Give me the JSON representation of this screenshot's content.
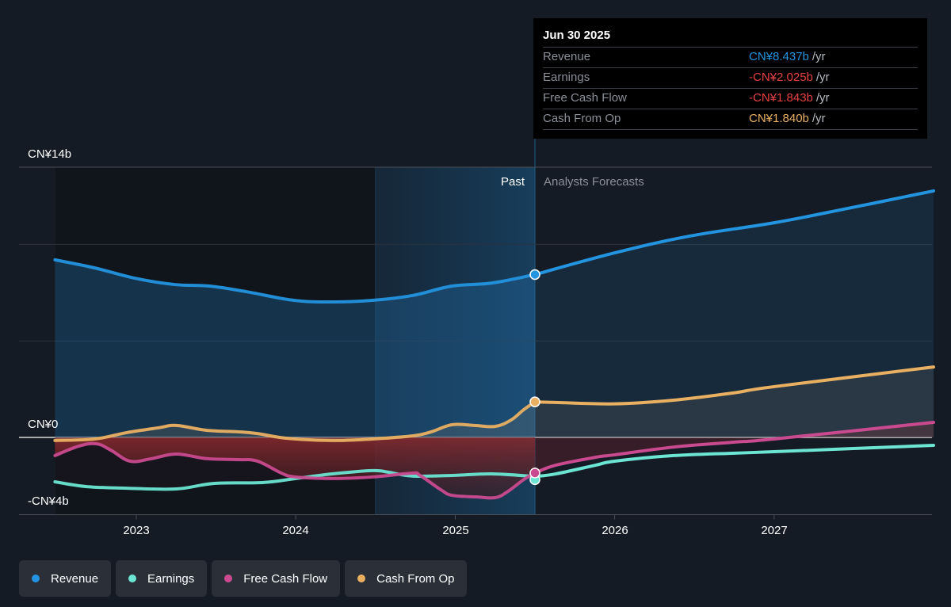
{
  "tooltip": {
    "date": "Jun 30 2025",
    "rows": [
      {
        "name": "Revenue",
        "value": "CN¥8.437b",
        "unit": "/yr",
        "color": "#2394df"
      },
      {
        "name": "Earnings",
        "value": "-CN¥2.025b",
        "unit": "/yr",
        "color": "#e64141"
      },
      {
        "name": "Free Cash Flow",
        "value": "-CN¥1.843b",
        "unit": "/yr",
        "color": "#e64141"
      },
      {
        "name": "Cash From Op",
        "value": "CN¥1.840b",
        "unit": "/yr",
        "color": "#e9b062"
      }
    ]
  },
  "legend": [
    {
      "label": "Revenue",
      "color": "#2394df"
    },
    {
      "label": "Earnings",
      "color": "#6ce5d2"
    },
    {
      "label": "Free Cash Flow",
      "color": "#c94a8f"
    },
    {
      "label": "Cash From Op",
      "color": "#e9b062"
    }
  ],
  "chart_data": {
    "type": "line",
    "title": "",
    "xlabel": "",
    "ylabel": "",
    "currency": "CN¥",
    "unit": "b",
    "xlim": [
      2022.49,
      2028.0
    ],
    "ylim": [
      -4,
      14
    ],
    "y_tick_labels": [
      {
        "value": 14,
        "label": "CN¥14b"
      },
      {
        "value": 0,
        "label": "CN¥0"
      },
      {
        "value": -4,
        "label": "-CN¥4b"
      }
    ],
    "y_gridlines": [
      14,
      10,
      5,
      0,
      -4
    ],
    "x_ticks": [
      {
        "value": 2023,
        "label": "2023"
      },
      {
        "value": 2024,
        "label": "2024"
      },
      {
        "value": 2025,
        "label": "2025"
      },
      {
        "value": 2026,
        "label": "2026"
      },
      {
        "value": 2027,
        "label": "2027"
      }
    ],
    "past_label": "Past",
    "forecast_label": "Analysts Forecasts",
    "highlight_range": [
      2024.5,
      2025.5
    ],
    "divider_x": 2025.5,
    "grid": true,
    "legend_position": "bottom-left",
    "series": [
      {
        "name": "Revenue",
        "color": "#2394df",
        "past": [
          [
            2022.49,
            9.2
          ],
          [
            2022.74,
            8.78
          ],
          [
            2022.99,
            8.25
          ],
          [
            2023.24,
            7.92
          ],
          [
            2023.46,
            7.84
          ],
          [
            2023.69,
            7.55
          ],
          [
            2023.99,
            7.1
          ],
          [
            2024.23,
            7.02
          ],
          [
            2024.48,
            7.1
          ],
          [
            2024.73,
            7.35
          ],
          [
            2024.98,
            7.84
          ],
          [
            2025.23,
            8.0
          ],
          [
            2025.5,
            8.437
          ]
        ],
        "forecast": [
          [
            2025.5,
            8.437
          ],
          [
            2026.0,
            9.56
          ],
          [
            2026.47,
            10.43
          ],
          [
            2027.0,
            11.12
          ],
          [
            2027.46,
            11.86
          ],
          [
            2028.0,
            12.77
          ]
        ]
      },
      {
        "name": "Earnings",
        "color": "#6ce5d2",
        "past": [
          [
            2022.49,
            -2.3
          ],
          [
            2022.69,
            -2.55
          ],
          [
            2022.94,
            -2.63
          ],
          [
            2023.25,
            -2.67
          ],
          [
            2023.49,
            -2.38
          ],
          [
            2023.79,
            -2.34
          ],
          [
            2024.0,
            -2.13
          ],
          [
            2024.23,
            -1.89
          ],
          [
            2024.48,
            -1.72
          ],
          [
            2024.58,
            -1.8
          ],
          [
            2024.73,
            -2.0
          ],
          [
            2024.98,
            -1.97
          ],
          [
            2025.23,
            -1.89
          ],
          [
            2025.5,
            -2.025
          ]
        ],
        "forecast": [
          [
            2025.5,
            -2.025
          ],
          [
            2025.63,
            -1.89
          ],
          [
            2025.88,
            -1.44
          ],
          [
            2026.0,
            -1.23
          ],
          [
            2026.37,
            -0.94
          ],
          [
            2026.74,
            -0.82
          ],
          [
            2027.0,
            -0.74
          ],
          [
            2028.0,
            -0.41
          ]
        ]
      },
      {
        "name": "Free Cash Flow",
        "color": "#c94a8f",
        "past": [
          [
            2022.49,
            -0.94
          ],
          [
            2022.64,
            -0.45
          ],
          [
            2022.75,
            -0.33
          ],
          [
            2022.84,
            -0.66
          ],
          [
            2022.96,
            -1.23
          ],
          [
            2023.09,
            -1.11
          ],
          [
            2023.25,
            -0.86
          ],
          [
            2023.44,
            -1.1
          ],
          [
            2023.64,
            -1.15
          ],
          [
            2023.76,
            -1.23
          ],
          [
            2023.91,
            -1.85
          ],
          [
            2024.0,
            -2.05
          ],
          [
            2024.23,
            -2.13
          ],
          [
            2024.48,
            -2.05
          ],
          [
            2024.73,
            -1.85
          ],
          [
            2024.78,
            -1.97
          ],
          [
            2024.91,
            -2.71
          ],
          [
            2024.98,
            -3.0
          ],
          [
            2025.13,
            -3.08
          ],
          [
            2025.25,
            -3.12
          ],
          [
            2025.33,
            -2.8
          ],
          [
            2025.43,
            -2.18
          ],
          [
            2025.5,
            -1.843
          ]
        ],
        "forecast": [
          [
            2025.5,
            -1.843
          ],
          [
            2025.63,
            -1.44
          ],
          [
            2025.88,
            -1.03
          ],
          [
            2026.0,
            -0.9
          ],
          [
            2026.37,
            -0.5
          ],
          [
            2026.74,
            -0.25
          ],
          [
            2027.0,
            -0.08
          ],
          [
            2028.0,
            0.78
          ]
        ]
      },
      {
        "name": "Cash From Op",
        "color": "#e9b062",
        "past": [
          [
            2022.49,
            -0.16
          ],
          [
            2022.74,
            -0.08
          ],
          [
            2022.94,
            0.25
          ],
          [
            2023.14,
            0.5
          ],
          [
            2023.25,
            0.62
          ],
          [
            2023.44,
            0.37
          ],
          [
            2023.64,
            0.29
          ],
          [
            2023.76,
            0.2
          ],
          [
            2023.94,
            -0.04
          ],
          [
            2024.23,
            -0.16
          ],
          [
            2024.48,
            -0.08
          ],
          [
            2024.73,
            0.08
          ],
          [
            2024.85,
            0.29
          ],
          [
            2024.98,
            0.66
          ],
          [
            2025.12,
            0.62
          ],
          [
            2025.25,
            0.57
          ],
          [
            2025.35,
            0.9
          ],
          [
            2025.43,
            1.44
          ],
          [
            2025.5,
            1.84
          ]
        ],
        "forecast": [
          [
            2025.5,
            1.84
          ],
          [
            2025.63,
            1.81
          ],
          [
            2026.0,
            1.74
          ],
          [
            2026.37,
            1.93
          ],
          [
            2026.74,
            2.3
          ],
          [
            2027.0,
            2.63
          ],
          [
            2028.0,
            3.65
          ]
        ]
      }
    ]
  }
}
